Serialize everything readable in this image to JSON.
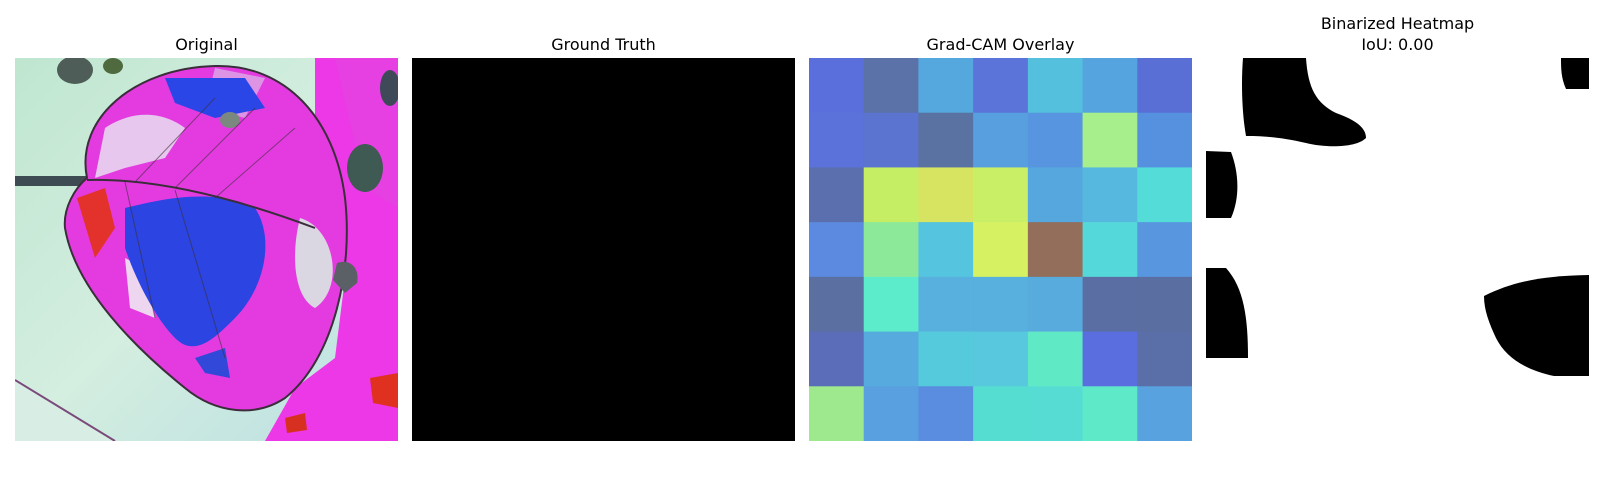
{
  "panels": [
    {
      "title": "Original"
    },
    {
      "title": "Ground Truth"
    },
    {
      "title": "Grad-CAM Overlay"
    },
    {
      "title": "Binarized Heatmap",
      "subtitle": "IoU: 0.00"
    }
  ],
  "gradcam_grid": {
    "rows": 7,
    "cols": 7,
    "colors": [
      [
        "#5b6fdc",
        "#5b72a8",
        "#55a8de",
        "#5a74da",
        "#55c0de",
        "#56a4df",
        "#5a6fd6"
      ],
      [
        "#5b72da",
        "#5a74cf",
        "#5a72a2",
        "#589fdf",
        "#5795e0",
        "#a6ef8c",
        "#5691e0"
      ],
      [
        "#5b6fae",
        "#c5ee64",
        "#d6e461",
        "#c9ef66",
        "#56a7dd",
        "#56b8df",
        "#54dcd8"
      ],
      [
        "#5b8ae0",
        "#8de99a",
        "#55c4de",
        "#d6f262",
        "#926e5b",
        "#55d8da",
        "#5897e0"
      ],
      [
        "#5b6fa0",
        "#5ceccb",
        "#57b0dd",
        "#57b0dd",
        "#57acdd",
        "#5a6ea4",
        "#5a6ea2"
      ],
      [
        "#5b6cb8",
        "#56aadd",
        "#56cadd",
        "#57c8dd",
        "#5feac5",
        "#5a6ee0",
        "#5a6ea8"
      ],
      [
        "#9ee98d",
        "#58a0df",
        "#5a8ce0",
        "#56ddd2",
        "#57dcd4",
        "#5ee9c8",
        "#58a2df"
      ]
    ]
  }
}
